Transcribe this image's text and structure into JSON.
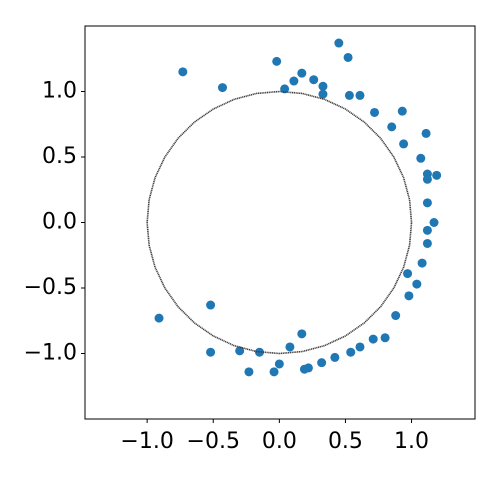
{
  "chart_data": {
    "type": "scatter",
    "xlim": [
      -1.47,
      1.48
    ],
    "ylim": [
      -1.5,
      1.5
    ],
    "xticks": [
      {
        "value": -1,
        "label": "−1.0"
      },
      {
        "value": -0.5,
        "label": "−0.5"
      },
      {
        "value": 0,
        "label": "0.0"
      },
      {
        "value": 0.5,
        "label": "0.5"
      },
      {
        "value": 1,
        "label": "1.0"
      }
    ],
    "yticks": [
      {
        "value": -1,
        "label": "−1.0"
      },
      {
        "value": -0.5,
        "label": "−0.5"
      },
      {
        "value": 0,
        "label": "0.0"
      },
      {
        "value": 0.5,
        "label": "0.5"
      },
      {
        "value": 1,
        "label": "1.0"
      }
    ],
    "grid": false,
    "series": [
      {
        "color": "#1f77b4",
        "style": "markers",
        "x": [
          -0.73,
          -0.43,
          -0.02,
          0.04,
          0.11,
          0.17,
          0.26,
          0.33,
          0.33,
          0.45,
          0.52,
          0.53,
          0.61,
          0.72,
          0.85,
          0.93,
          0.94,
          1.11,
          1.07,
          1.12,
          1.12,
          1.19,
          1.12,
          1.17,
          1.12,
          1.12,
          1.08,
          0.97,
          1.04,
          0.98,
          0.88,
          0.8,
          0.71,
          0.61,
          0.54,
          0.42,
          0.32,
          0.22,
          0.19,
          0.17,
          0.08,
          0.0,
          -0.04,
          -0.15,
          -0.3,
          -0.23,
          -0.52,
          -0.52,
          -0.91
        ],
        "values": [
          1.15,
          1.03,
          1.23,
          1.02,
          1.08,
          1.14,
          1.09,
          1.04,
          0.98,
          1.37,
          1.26,
          0.97,
          0.97,
          0.84,
          0.73,
          0.85,
          0.6,
          0.68,
          0.49,
          0.37,
          0.33,
          0.36,
          0.15,
          0.0,
          -0.06,
          -0.16,
          -0.31,
          -0.39,
          -0.47,
          -0.56,
          -0.71,
          -0.88,
          -0.89,
          -0.95,
          -0.99,
          -1.03,
          -1.07,
          -1.11,
          -1.12,
          -0.85,
          -0.95,
          -1.08,
          -1.14,
          -0.99,
          -0.98,
          -1.14,
          -0.99,
          -0.63,
          -0.73
        ]
      },
      {
        "color": "#404040",
        "style": "line",
        "x": [
          1,
          0.985,
          0.94,
          0.866,
          0.766,
          0.643,
          0.5,
          0.342,
          0.174,
          0,
          -0.174,
          -0.342,
          -0.5,
          -0.643,
          -0.766,
          -0.866,
          -0.94,
          -0.985,
          -1,
          -0.985,
          -0.94,
          -0.866,
          -0.766,
          -0.643,
          -0.5,
          -0.342,
          -0.174,
          0,
          0.174,
          0.342,
          0.5,
          0.643,
          0.766,
          0.866,
          0.94,
          0.985,
          1
        ],
        "values": [
          0,
          0.174,
          0.342,
          0.5,
          0.643,
          0.766,
          0.866,
          0.94,
          0.985,
          1,
          0.985,
          0.94,
          0.866,
          0.766,
          0.643,
          0.5,
          0.342,
          0.174,
          0,
          -0.174,
          -0.342,
          -0.5,
          -0.643,
          -0.766,
          -0.866,
          -0.94,
          -0.985,
          -1,
          -0.985,
          -0.94,
          -0.866,
          -0.766,
          -0.643,
          -0.5,
          -0.342,
          -0.174,
          0
        ]
      }
    ]
  }
}
